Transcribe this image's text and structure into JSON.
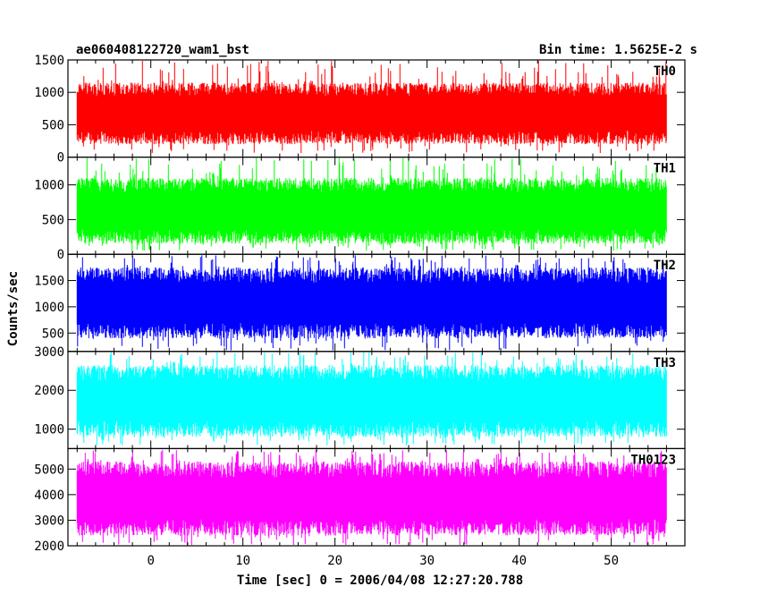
{
  "chart_data": {
    "type": "line",
    "title_left": "ae060408122720_wam1_bst",
    "title_right": "Bin time: 1.5625E-2 s",
    "xlabel": "Time [sec] 0 = 2006/04/08 12:27:20.788",
    "ylabel": "Counts/sec",
    "xlim": [
      -9,
      58
    ],
    "x_ticks": [
      0,
      10,
      20,
      30,
      40,
      50
    ],
    "x_data_range": [
      -8,
      56
    ],
    "bin_time": 0.015625,
    "grid": false,
    "panels": [
      {
        "name": "TH0",
        "color": "#ff0000",
        "ylim": [
          0,
          1500
        ],
        "y_ticks": [
          0,
          500,
          1000,
          1500
        ],
        "typical_low": 200,
        "typical_high": 1150,
        "min": 60,
        "max": 1500
      },
      {
        "name": "TH1",
        "color": "#00ff00",
        "ylim": [
          0,
          1400
        ],
        "y_ticks": [
          0,
          500,
          1000
        ],
        "typical_low": 150,
        "typical_high": 1100,
        "min": 50,
        "max": 1400
      },
      {
        "name": "TH2",
        "color": "#0000ff",
        "ylim": [
          150,
          2000
        ],
        "y_ticks": [
          500,
          1000,
          1500
        ],
        "typical_low": 400,
        "typical_high": 1750,
        "min": 170,
        "max": 1980
      },
      {
        "name": "TH3",
        "color": "#00ffff",
        "ylim": [
          500,
          3000
        ],
        "y_ticks": [
          1000,
          2000,
          3000
        ],
        "typical_low": 800,
        "typical_high": 2650,
        "min": 580,
        "max": 3000
      },
      {
        "name": "TH0123",
        "color": "#ff00ff",
        "ylim": [
          2000,
          5800
        ],
        "y_ticks": [
          2000,
          3000,
          4000,
          5000
        ],
        "typical_low": 2400,
        "typical_high": 5300,
        "min": 2000,
        "max": 5750
      }
    ]
  }
}
